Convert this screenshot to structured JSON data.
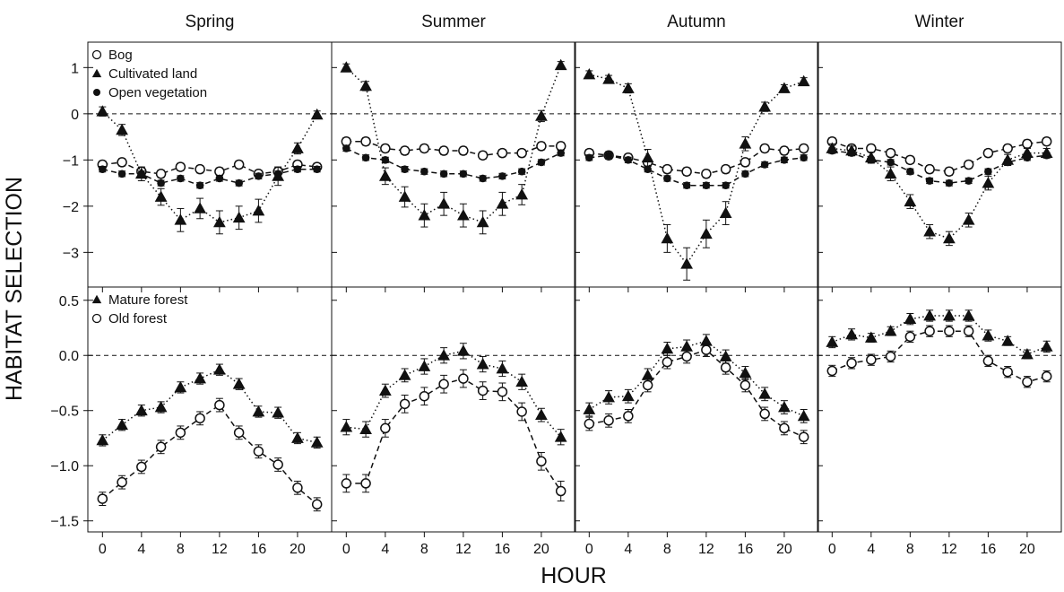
{
  "figure": {
    "ylabel": "HABITAT SELECTION",
    "xlabel": "HOUR",
    "seasons": [
      "Spring",
      "Summer",
      "Autumn",
      "Winter"
    ]
  },
  "chart_data": [
    {
      "type": "line",
      "row": "top",
      "ylim": [
        -3.75,
        1.55
      ],
      "yticks": [
        1,
        0,
        -1,
        -2,
        -3
      ],
      "ytick_labels": [
        "1",
        "0",
        "−1",
        "−2",
        "−3"
      ],
      "xlim": [
        -1.5,
        23.5
      ],
      "xticks": [
        0,
        4,
        8,
        12,
        16,
        20
      ],
      "reference_line": 0,
      "legend": [
        "Bog",
        "Cultivated land",
        "Open vegetation"
      ],
      "x": [
        0,
        2,
        4,
        6,
        8,
        10,
        12,
        14,
        16,
        18,
        20,
        22
      ],
      "panels": [
        {
          "season": "Spring",
          "series": [
            {
              "name": "Bog",
              "marker": "open-circle",
              "line": "dashed",
              "values": [
                -1.1,
                -1.05,
                -1.25,
                -1.3,
                -1.15,
                -1.2,
                -1.25,
                -1.1,
                -1.3,
                -1.25,
                -1.1,
                -1.15
              ],
              "err": [
                0.08,
                0.08,
                0.08,
                0.08,
                0.08,
                0.08,
                0.08,
                0.08,
                0.08,
                0.08,
                0.08,
                0.08
              ]
            },
            {
              "name": "Cultivated land",
              "marker": "filled-triangle",
              "line": "dotted",
              "values": [
                0.05,
                -0.35,
                -1.3,
                -1.8,
                -2.3,
                -2.05,
                -2.35,
                -2.25,
                -2.1,
                -1.35,
                -0.75,
                -0.02
              ],
              "err": [
                0.1,
                0.12,
                0.15,
                0.18,
                0.25,
                0.22,
                0.25,
                0.25,
                0.25,
                0.2,
                0.12,
                0.08
              ]
            },
            {
              "name": "Open vegetation",
              "marker": "filled-circle",
              "line": "dashed",
              "values": [
                -1.2,
                -1.3,
                -1.3,
                -1.5,
                -1.4,
                -1.55,
                -1.4,
                -1.5,
                -1.35,
                -1.3,
                -1.2,
                -1.2
              ],
              "err": [
                0.06,
                0.06,
                0.06,
                0.06,
                0.06,
                0.06,
                0.06,
                0.06,
                0.06,
                0.06,
                0.06,
                0.06
              ]
            }
          ]
        },
        {
          "season": "Summer",
          "series": [
            {
              "name": "Bog",
              "marker": "open-circle",
              "line": "dashed",
              "values": [
                -0.6,
                -0.6,
                -0.75,
                -0.8,
                -0.75,
                -0.8,
                -0.8,
                -0.9,
                -0.85,
                -0.85,
                -0.7,
                -0.7
              ],
              "err": [
                0.08,
                0.08,
                0.08,
                0.08,
                0.08,
                0.08,
                0.08,
                0.08,
                0.08,
                0.08,
                0.08,
                0.08
              ]
            },
            {
              "name": "Cultivated land",
              "marker": "filled-triangle",
              "line": "dotted",
              "values": [
                1.0,
                0.6,
                -1.35,
                -1.8,
                -2.2,
                -1.95,
                -2.2,
                -2.35,
                -1.95,
                -1.75,
                -0.05,
                1.05
              ],
              "err": [
                0.08,
                0.1,
                0.18,
                0.22,
                0.25,
                0.25,
                0.25,
                0.25,
                0.25,
                0.22,
                0.12,
                0.08
              ]
            },
            {
              "name": "Open vegetation",
              "marker": "filled-circle",
              "line": "dashed",
              "values": [
                -0.75,
                -0.95,
                -1.0,
                -1.2,
                -1.25,
                -1.3,
                -1.3,
                -1.4,
                -1.35,
                -1.25,
                -1.05,
                -0.85
              ],
              "err": [
                0.06,
                0.06,
                0.06,
                0.06,
                0.06,
                0.06,
                0.06,
                0.06,
                0.06,
                0.06,
                0.06,
                0.06
              ]
            }
          ]
        },
        {
          "season": "Autumn",
          "series": [
            {
              "name": "Bog",
              "marker": "open-circle",
              "line": "dashed",
              "values": [
                -0.85,
                -0.9,
                -0.95,
                -1.05,
                -1.2,
                -1.25,
                -1.3,
                -1.2,
                -1.05,
                -0.75,
                -0.8,
                -0.75
              ],
              "err": [
                0.08,
                0.08,
                0.08,
                0.08,
                0.08,
                0.08,
                0.08,
                0.08,
                0.08,
                0.08,
                0.08,
                0.08
              ]
            },
            {
              "name": "Cultivated land",
              "marker": "filled-triangle",
              "line": "dotted",
              "values": [
                0.85,
                0.75,
                0.55,
                -0.95,
                -2.7,
                -3.25,
                -2.6,
                -2.15,
                -0.65,
                0.15,
                0.55,
                0.7
              ],
              "err": [
                0.08,
                0.08,
                0.1,
                0.18,
                0.3,
                0.35,
                0.3,
                0.25,
                0.15,
                0.1,
                0.08,
                0.08
              ]
            },
            {
              "name": "Open vegetation",
              "marker": "filled-circle",
              "line": "dashed",
              "values": [
                -0.95,
                -0.9,
                -1.0,
                -1.2,
                -1.4,
                -1.55,
                -1.55,
                -1.55,
                -1.3,
                -1.1,
                -1.0,
                -0.95
              ],
              "err": [
                0.06,
                0.06,
                0.06,
                0.06,
                0.06,
                0.06,
                0.06,
                0.06,
                0.06,
                0.06,
                0.06,
                0.06
              ]
            }
          ]
        },
        {
          "season": "Winter",
          "series": [
            {
              "name": "Bog",
              "marker": "open-circle",
              "line": "dashed",
              "values": [
                -0.6,
                -0.75,
                -0.75,
                -0.85,
                -1.0,
                -1.2,
                -1.25,
                -1.1,
                -0.85,
                -0.75,
                -0.65,
                -0.6
              ],
              "err": [
                0.08,
                0.08,
                0.08,
                0.08,
                0.08,
                0.08,
                0.08,
                0.08,
                0.08,
                0.08,
                0.08,
                0.08
              ]
            },
            {
              "name": "Cultivated land",
              "marker": "filled-triangle",
              "line": "dotted",
              "values": [
                -0.75,
                -0.8,
                -0.95,
                -1.3,
                -1.9,
                -2.55,
                -2.7,
                -2.3,
                -1.5,
                -1.0,
                -0.85,
                -0.85
              ],
              "err": [
                0.1,
                0.1,
                0.12,
                0.15,
                0.15,
                0.15,
                0.15,
                0.15,
                0.15,
                0.12,
                0.1,
                0.1
              ]
            },
            {
              "name": "Open vegetation",
              "marker": "filled-circle",
              "line": "dashed",
              "values": [
                -0.8,
                -0.85,
                -1.0,
                -1.05,
                -1.25,
                -1.45,
                -1.5,
                -1.45,
                -1.25,
                -1.05,
                -0.95,
                -0.9
              ],
              "err": [
                0.06,
                0.06,
                0.06,
                0.06,
                0.06,
                0.06,
                0.06,
                0.06,
                0.06,
                0.06,
                0.06,
                0.06
              ]
            }
          ]
        }
      ]
    },
    {
      "type": "line",
      "row": "bottom",
      "ylim": [
        -1.6,
        0.62
      ],
      "yticks": [
        0.5,
        0.0,
        -0.5,
        -1.0,
        -1.5
      ],
      "ytick_labels": [
        "0.5",
        "0.0",
        "−0.5",
        "−1.0",
        "−1.5"
      ],
      "xlim": [
        -1.5,
        23.5
      ],
      "xticks": [
        0,
        4,
        8,
        12,
        16,
        20
      ],
      "xtick_labels": [
        "0",
        "4",
        "8",
        "12",
        "16",
        "20"
      ],
      "reference_line": 0,
      "legend": [
        "Mature forest",
        "Old forest"
      ],
      "x": [
        0,
        2,
        4,
        6,
        8,
        10,
        12,
        14,
        16,
        18,
        20,
        22
      ],
      "panels": [
        {
          "season": "Spring",
          "series": [
            {
              "name": "Mature forest",
              "marker": "filled-triangle",
              "line": "dotted",
              "values": [
                -0.77,
                -0.63,
                -0.5,
                -0.47,
                -0.29,
                -0.21,
                -0.13,
                -0.26,
                -0.51,
                -0.52,
                -0.75,
                -0.79
              ],
              "err": [
                0.05,
                0.05,
                0.05,
                0.05,
                0.05,
                0.05,
                0.05,
                0.05,
                0.05,
                0.05,
                0.05,
                0.05
              ]
            },
            {
              "name": "Old forest",
              "marker": "open-circle",
              "line": "dashed",
              "values": [
                -1.3,
                -1.15,
                -1.01,
                -0.83,
                -0.7,
                -0.57,
                -0.45,
                -0.7,
                -0.87,
                -0.99,
                -1.2,
                -1.35
              ],
              "err": [
                0.06,
                0.06,
                0.06,
                0.06,
                0.06,
                0.06,
                0.06,
                0.06,
                0.06,
                0.06,
                0.06,
                0.06
              ]
            }
          ]
        },
        {
          "season": "Summer",
          "series": [
            {
              "name": "Mature forest",
              "marker": "filled-triangle",
              "line": "dotted",
              "values": [
                -0.65,
                -0.67,
                -0.32,
                -0.18,
                -0.1,
                0.0,
                0.04,
                -0.08,
                -0.12,
                -0.24,
                -0.54,
                -0.74
              ],
              "err": [
                0.07,
                0.07,
                0.06,
                0.06,
                0.07,
                0.07,
                0.07,
                0.07,
                0.07,
                0.07,
                0.06,
                0.07
              ]
            },
            {
              "name": "Old forest",
              "marker": "open-circle",
              "line": "dashed",
              "values": [
                -1.16,
                -1.16,
                -0.66,
                -0.44,
                -0.37,
                -0.26,
                -0.21,
                -0.32,
                -0.33,
                -0.51,
                -0.96,
                -1.23
              ],
              "err": [
                0.08,
                0.08,
                0.08,
                0.08,
                0.08,
                0.08,
                0.08,
                0.08,
                0.08,
                0.08,
                0.08,
                0.09
              ]
            }
          ]
        },
        {
          "season": "Autumn",
          "series": [
            {
              "name": "Mature forest",
              "marker": "filled-triangle",
              "line": "dotted",
              "values": [
                -0.49,
                -0.38,
                -0.37,
                -0.18,
                0.06,
                0.08,
                0.13,
                -0.01,
                -0.16,
                -0.35,
                -0.47,
                -0.55
              ],
              "err": [
                0.06,
                0.06,
                0.06,
                0.06,
                0.06,
                0.06,
                0.06,
                0.06,
                0.06,
                0.06,
                0.06,
                0.06
              ]
            },
            {
              "name": "Old forest",
              "marker": "open-circle",
              "line": "dashed",
              "values": [
                -0.62,
                -0.59,
                -0.55,
                -0.27,
                -0.06,
                -0.01,
                0.05,
                -0.11,
                -0.27,
                -0.53,
                -0.66,
                -0.74
              ],
              "err": [
                0.06,
                0.06,
                0.06,
                0.06,
                0.06,
                0.06,
                0.06,
                0.06,
                0.06,
                0.06,
                0.06,
                0.06
              ]
            }
          ]
        },
        {
          "season": "Winter",
          "series": [
            {
              "name": "Mature forest",
              "marker": "filled-triangle",
              "line": "dotted",
              "values": [
                0.12,
                0.19,
                0.16,
                0.22,
                0.33,
                0.36,
                0.36,
                0.36,
                0.18,
                0.13,
                0.01,
                0.08
              ],
              "err": [
                0.05,
                0.05,
                0.04,
                0.04,
                0.05,
                0.05,
                0.05,
                0.05,
                0.05,
                0.04,
                0.04,
                0.05
              ]
            },
            {
              "name": "Old forest",
              "marker": "open-circle",
              "line": "dashed",
              "values": [
                -0.14,
                -0.07,
                -0.04,
                -0.01,
                0.17,
                0.22,
                0.22,
                0.22,
                -0.05,
                -0.15,
                -0.24,
                -0.19
              ],
              "err": [
                0.05,
                0.05,
                0.05,
                0.05,
                0.05,
                0.05,
                0.05,
                0.05,
                0.05,
                0.05,
                0.05,
                0.05
              ]
            }
          ]
        }
      ]
    }
  ]
}
